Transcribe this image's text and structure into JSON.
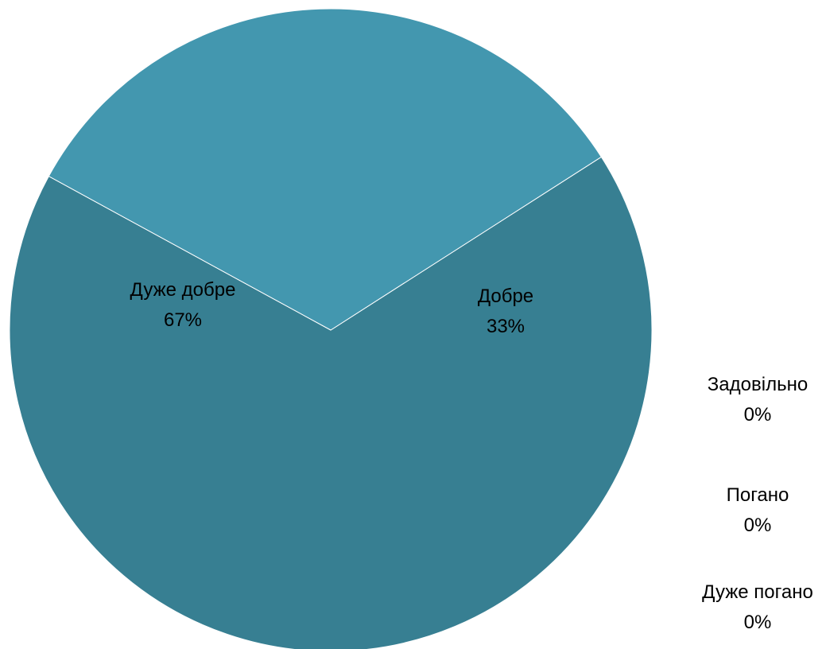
{
  "chart_data": {
    "type": "pie",
    "title": "",
    "slices": [
      {
        "label": "Дуже добре",
        "value": 67,
        "value_label": "67%",
        "color": "#377F92"
      },
      {
        "label": "Добре",
        "value": 33,
        "value_label": "33%",
        "color": "#4397AF"
      },
      {
        "label": "Задовільно",
        "value": 0,
        "value_label": "0%",
        "color": "#5BB0C6"
      },
      {
        "label": "Погано",
        "value": 0,
        "value_label": "0%",
        "color": "#7FC3D4"
      },
      {
        "label": "Дуже погано",
        "value": 0,
        "value_label": "0%",
        "color": "#A6D6E2"
      }
    ],
    "legend": "none",
    "colors": {
      "slice_border": "#ffffff",
      "label_text": "#000000"
    }
  }
}
